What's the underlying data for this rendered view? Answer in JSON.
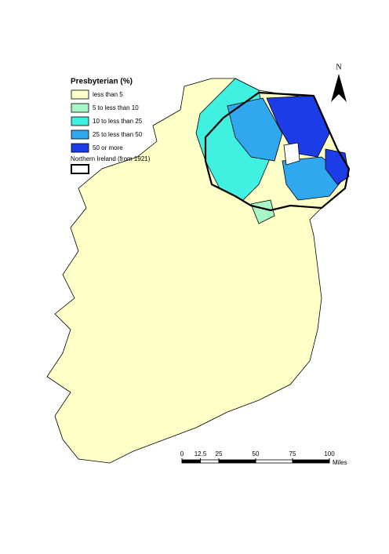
{
  "legend": {
    "title": "Presbyterian (%)",
    "items": [
      {
        "label": "less than 5",
        "color": "#ffffc8"
      },
      {
        "label": "5 to less than 10",
        "color": "#a8f5c8"
      },
      {
        "label": "10 to less than 25",
        "color": "#40f0e0"
      },
      {
        "label": "25 to less than 50",
        "color": "#30a8f0"
      },
      {
        "label": "50 or more",
        "color": "#1c3ce8"
      }
    ],
    "border_label": "Northern Ireland (from 1921)"
  },
  "north_arrow": "N",
  "scale_bar": {
    "ticks": [
      0,
      12.5,
      25,
      50,
      75,
      100
    ],
    "unit": "Miles"
  }
}
